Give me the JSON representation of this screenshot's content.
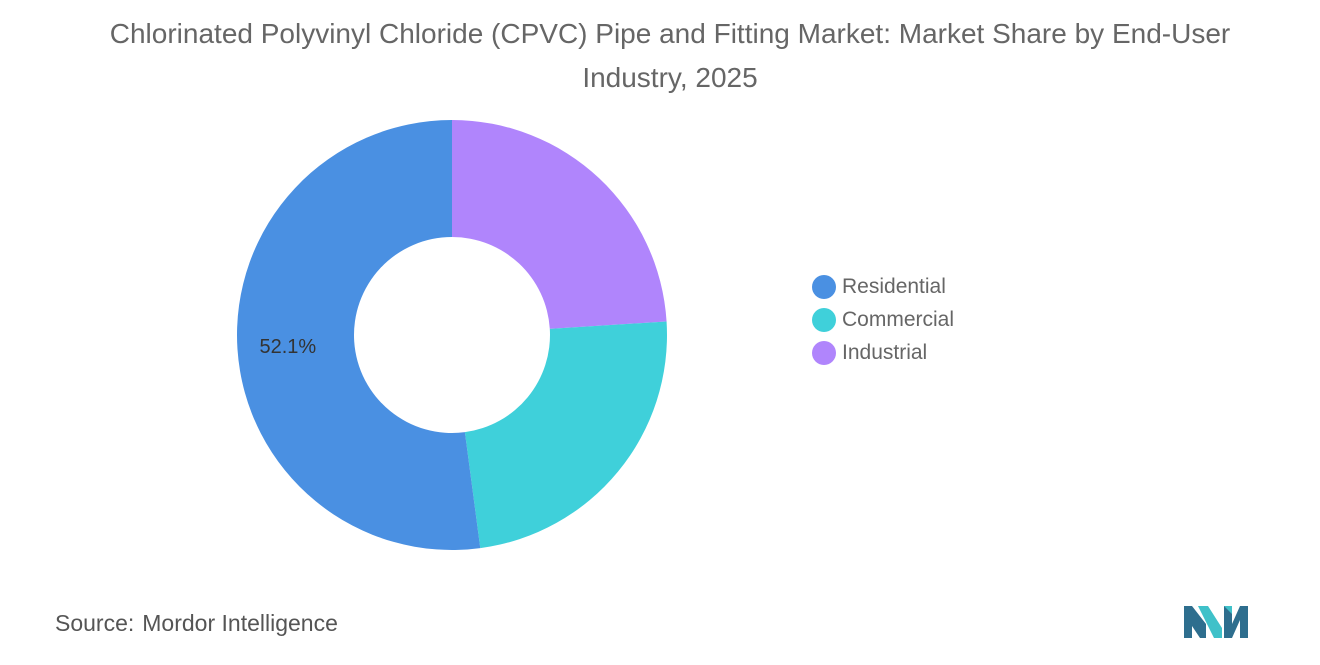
{
  "title": "Chlorinated Polyvinyl Chloride (CPVC) Pipe and Fitting Market: Market Share by End-User Industry, 2025",
  "source": {
    "label": "Source:",
    "value": "Mordor Intelligence"
  },
  "chart_data": {
    "type": "pie",
    "subtype": "donut",
    "title": "Chlorinated Polyvinyl Chloride (CPVC) Pipe and Fitting Market: Market Share by End-User Industry, 2025",
    "categories": [
      "Residential",
      "Commercial",
      "Industrial"
    ],
    "values": [
      52.1,
      23.9,
      24.0
    ],
    "colors": [
      "#4A90E2",
      "#3FD0DA",
      "#B085FC"
    ],
    "data_labels": [
      "52.1%",
      "",
      ""
    ],
    "legend_position": "right"
  }
}
